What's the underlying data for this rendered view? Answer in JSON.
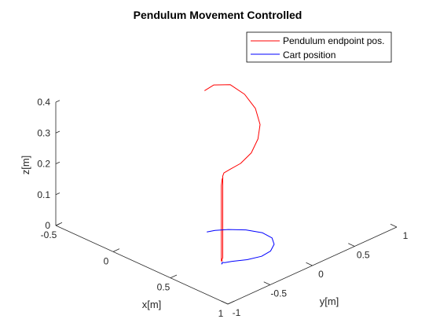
{
  "chart_data": {
    "type": "line",
    "title": "Pendulum Movement Controlled",
    "xlabel": "x[m]",
    "ylabel": "y[m]",
    "zlabel": "z[m]",
    "xlim": [
      -0.5,
      1
    ],
    "ylim": [
      -1,
      1
    ],
    "zlim": [
      0,
      0.4
    ],
    "x_ticks": [
      "-0.5",
      "0",
      "0.5",
      "1"
    ],
    "y_ticks": [
      "-1",
      "-0.5",
      "0",
      "0.5",
      "1"
    ],
    "z_ticks": [
      "0",
      "0.1",
      "0.2",
      "0.3",
      "0.4"
    ],
    "grid": false,
    "legend_position": "top-right",
    "series": [
      {
        "name": "Pendulum endpoint pos.",
        "color": "#ff0000",
        "points": [
          [
            0.59,
            -0.5,
            0.278
          ],
          [
            0.59,
            -0.51,
            0.275
          ],
          [
            0.59,
            -0.52,
            0.255
          ],
          [
            0.59,
            -0.52,
            0.2
          ],
          [
            0.59,
            -0.52,
            0.15
          ],
          [
            0.59,
            -0.52,
            0.1
          ],
          [
            0.59,
            -0.52,
            0.05
          ],
          [
            0.59,
            -0.52,
            0.02
          ],
          [
            0.59,
            -0.52,
            0.01
          ],
          [
            0.59,
            -0.51,
            0.009
          ],
          [
            0.58,
            -0.5,
            0.01
          ],
          [
            0.58,
            -0.49,
            0.015
          ],
          [
            0.58,
            -0.49,
            0.03
          ],
          [
            0.58,
            -0.49,
            0.06
          ],
          [
            0.58,
            -0.49,
            0.1
          ],
          [
            0.58,
            -0.49,
            0.15
          ],
          [
            0.58,
            -0.49,
            0.2
          ],
          [
            0.58,
            -0.49,
            0.25
          ],
          [
            0.58,
            -0.49,
            0.28
          ],
          [
            0.59,
            -0.49,
            0.292
          ],
          [
            0.6,
            -0.43,
            0.298
          ],
          [
            0.61,
            -0.32,
            0.305
          ],
          [
            0.6,
            -0.18,
            0.32
          ],
          [
            0.57,
            -0.06,
            0.345
          ],
          [
            0.53,
            0.02,
            0.375
          ],
          [
            0.46,
            0.06,
            0.41
          ],
          [
            0.38,
            0.04,
            0.445
          ],
          [
            0.3,
            -0.02,
            0.47
          ],
          [
            0.23,
            -0.12,
            0.47
          ],
          [
            0.2,
            -0.19,
            0.455
          ]
        ]
      },
      {
        "name": "Cart position",
        "color": "#0000ff",
        "points": [
          [
            0.59,
            -0.52,
            0
          ],
          [
            0.59,
            -0.51,
            0
          ],
          [
            0.58,
            -0.5,
            0
          ],
          [
            0.58,
            -0.49,
            0
          ],
          [
            0.59,
            -0.48,
            0
          ],
          [
            0.61,
            -0.42,
            0
          ],
          [
            0.66,
            -0.31,
            0
          ],
          [
            0.69,
            -0.18,
            0
          ],
          [
            0.68,
            -0.06,
            0
          ],
          [
            0.63,
            0.05,
            0
          ],
          [
            0.56,
            0.12,
            0
          ],
          [
            0.47,
            0.13,
            0
          ],
          [
            0.37,
            0.07,
            0
          ],
          [
            0.29,
            -0.03,
            0
          ],
          [
            0.24,
            -0.12,
            0
          ],
          [
            0.22,
            -0.19,
            0
          ]
        ]
      }
    ]
  }
}
